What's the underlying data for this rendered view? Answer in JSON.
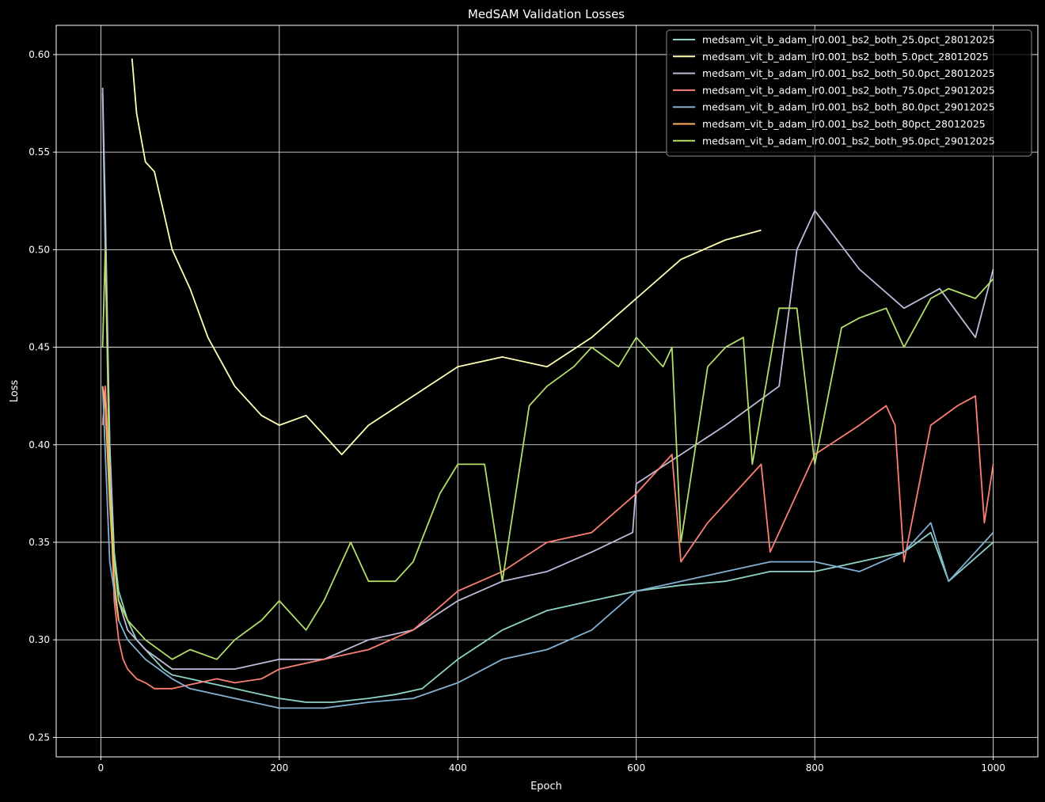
{
  "chart_data": {
    "type": "line",
    "title": "MedSAM Validation Losses",
    "xlabel": "Epoch",
    "ylabel": "Loss",
    "xlim": [
      -50,
      1050
    ],
    "ylim": [
      0.24,
      0.615
    ],
    "xticks": [
      0,
      200,
      400,
      600,
      800,
      1000
    ],
    "yticks": [
      0.25,
      0.3,
      0.35,
      0.4,
      0.45,
      0.5,
      0.55,
      0.6
    ],
    "xtick_labels": [
      "0",
      "200",
      "400",
      "600",
      "800",
      "1000"
    ],
    "ytick_labels": [
      "0.25",
      "0.30",
      "0.35",
      "0.40",
      "0.45",
      "0.50",
      "0.55",
      "0.60"
    ],
    "grid": true,
    "legend_position": "top-right",
    "background": "#000000",
    "series": [
      {
        "name": "medsam_vit_b_adam_lr0.001_bs2_both_25.0pct_28012025",
        "color": "#8dd3c7",
        "x": [
          2,
          5,
          10,
          15,
          20,
          30,
          40,
          50,
          60,
          70,
          80,
          100,
          120,
          150,
          180,
          200,
          230,
          260,
          300,
          330,
          360,
          400,
          450,
          500,
          550,
          600,
          650,
          700,
          750,
          800,
          850,
          900,
          930,
          950,
          1000
        ],
        "y": [
          0.58,
          0.5,
          0.4,
          0.345,
          0.325,
          0.31,
          0.3,
          0.295,
          0.29,
          0.285,
          0.282,
          0.28,
          0.278,
          0.275,
          0.272,
          0.27,
          0.268,
          0.268,
          0.27,
          0.272,
          0.275,
          0.29,
          0.305,
          0.315,
          0.32,
          0.325,
          0.328,
          0.33,
          0.335,
          0.335,
          0.34,
          0.345,
          0.355,
          0.33,
          0.35
        ]
      },
      {
        "name": "medsam_vit_b_adam_lr0.001_bs2_both_5.0pct_28012025",
        "color": "#ffffb3",
        "x": [
          35,
          40,
          50,
          60,
          70,
          80,
          100,
          120,
          150,
          180,
          200,
          230,
          250,
          270,
          300,
          350,
          400,
          450,
          500,
          550,
          600,
          650,
          700,
          740
        ],
        "y": [
          0.598,
          0.57,
          0.545,
          0.54,
          0.52,
          0.5,
          0.48,
          0.455,
          0.43,
          0.415,
          0.41,
          0.415,
          0.405,
          0.395,
          0.41,
          0.425,
          0.44,
          0.445,
          0.44,
          0.455,
          0.475,
          0.495,
          0.505,
          0.51
        ]
      },
      {
        "name": "medsam_vit_b_adam_lr0.001_bs2_both_50.0pct_28012025",
        "color": "#bebada",
        "x": [
          2,
          5,
          10,
          15,
          20,
          30,
          50,
          80,
          100,
          150,
          200,
          250,
          300,
          350,
          400,
          450,
          500,
          550,
          596,
          600,
          700,
          760,
          780,
          800,
          850,
          900,
          940,
          980,
          1000
        ],
        "y": [
          0.583,
          0.52,
          0.4,
          0.34,
          0.32,
          0.305,
          0.295,
          0.285,
          0.285,
          0.285,
          0.29,
          0.29,
          0.3,
          0.305,
          0.32,
          0.33,
          0.335,
          0.345,
          0.355,
          0.38,
          0.41,
          0.43,
          0.5,
          0.52,
          0.49,
          0.47,
          0.48,
          0.455,
          0.49
        ]
      },
      {
        "name": "medsam_vit_b_adam_lr0.001_bs2_both_75.0pct_29012025",
        "color": "#fb8072",
        "x": [
          2,
          5,
          10,
          15,
          20,
          25,
          30,
          40,
          50,
          60,
          80,
          100,
          130,
          150,
          180,
          200,
          250,
          300,
          350,
          400,
          450,
          500,
          550,
          600,
          640,
          650,
          680,
          720,
          740,
          750,
          800,
          850,
          880,
          890,
          900,
          930,
          960,
          980,
          990,
          1000
        ],
        "y": [
          0.41,
          0.43,
          0.38,
          0.32,
          0.3,
          0.29,
          0.285,
          0.28,
          0.278,
          0.275,
          0.275,
          0.277,
          0.28,
          0.278,
          0.28,
          0.285,
          0.29,
          0.295,
          0.305,
          0.325,
          0.335,
          0.35,
          0.355,
          0.375,
          0.395,
          0.34,
          0.36,
          0.38,
          0.39,
          0.345,
          0.395,
          0.41,
          0.42,
          0.41,
          0.34,
          0.41,
          0.42,
          0.425,
          0.36,
          0.39
        ]
      },
      {
        "name": "medsam_vit_b_adam_lr0.001_bs2_both_80.0pct_29012025",
        "color": "#80b1d3",
        "x": [
          2,
          10,
          20,
          30,
          50,
          80,
          100,
          150,
          200,
          250,
          300,
          350,
          400,
          450,
          500,
          550,
          600,
          650,
          700,
          750,
          800,
          850,
          900,
          930,
          950,
          1000
        ],
        "y": [
          0.43,
          0.34,
          0.31,
          0.3,
          0.29,
          0.28,
          0.275,
          0.27,
          0.265,
          0.265,
          0.268,
          0.27,
          0.278,
          0.29,
          0.295,
          0.305,
          0.325,
          0.33,
          0.335,
          0.34,
          0.34,
          0.335,
          0.345,
          0.36,
          0.33,
          0.355
        ]
      },
      {
        "name": "medsam_vit_b_adam_lr0.001_bs2_both_80pct_28012025",
        "color": "#fdb462",
        "x": [
          2,
          5,
          10,
          15,
          20
        ],
        "y": [
          0.43,
          0.42,
          0.37,
          0.33,
          0.31
        ]
      },
      {
        "name": "medsam_vit_b_adam_lr0.001_bs2_both_95.0pct_29012025",
        "color": "#b3de69",
        "x": [
          2,
          5,
          10,
          15,
          20,
          30,
          50,
          80,
          100,
          130,
          150,
          180,
          200,
          230,
          250,
          280,
          300,
          330,
          350,
          380,
          400,
          430,
          450,
          480,
          500,
          530,
          550,
          580,
          600,
          630,
          640,
          650,
          680,
          700,
          720,
          730,
          760,
          780,
          800,
          830,
          850,
          880,
          900,
          930,
          950,
          980,
          1000
        ],
        "y": [
          0.45,
          0.5,
          0.38,
          0.34,
          0.32,
          0.31,
          0.3,
          0.29,
          0.295,
          0.29,
          0.3,
          0.31,
          0.32,
          0.305,
          0.32,
          0.35,
          0.33,
          0.33,
          0.34,
          0.375,
          0.39,
          0.39,
          0.33,
          0.42,
          0.43,
          0.44,
          0.45,
          0.44,
          0.455,
          0.44,
          0.45,
          0.35,
          0.44,
          0.45,
          0.455,
          0.39,
          0.47,
          0.47,
          0.39,
          0.46,
          0.465,
          0.47,
          0.45,
          0.475,
          0.48,
          0.475,
          0.485
        ]
      }
    ]
  }
}
